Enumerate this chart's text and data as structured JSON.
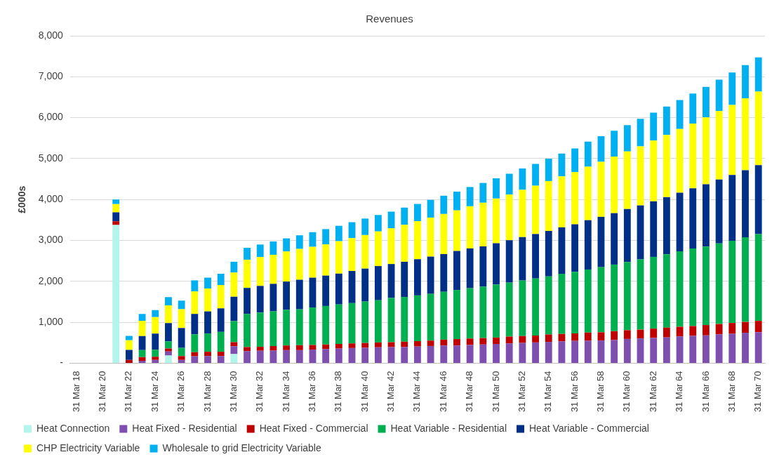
{
  "chart_data": {
    "type": "bar",
    "title": "Revenues",
    "ylabel": "£000s",
    "stacked": true,
    "grid": "y",
    "legend": "bottom",
    "categories": [
      "31 Mar 18",
      null,
      "31 Mar 20",
      null,
      "31 Mar 22",
      null,
      "31 Mar 24",
      null,
      "31 Mar 26",
      null,
      "31 Mar 28",
      null,
      "31 Mar 30",
      null,
      "31 Mar 32",
      null,
      "31 Mar 34",
      null,
      "31 Mar 36",
      null,
      "31 Mar 38",
      null,
      "31 Mar 40",
      null,
      "31 Mar 42",
      null,
      "31 Mar 44",
      null,
      "31 Mar 46",
      null,
      "31 Mar 48",
      null,
      "31 Mar 50",
      null,
      "31 Mar 52",
      null,
      "31 Mar 54",
      null,
      "31 Mar 56",
      null,
      "31 Mar 58",
      null,
      "31 Mar 60",
      null,
      "31 Mar 62",
      null,
      "31 Mar 64",
      null,
      "31 Mar 66",
      null,
      "31 Mar 68",
      null,
      "31 Mar 70"
    ],
    "ylim": [
      0,
      8000
    ],
    "yticks": [
      {
        "value": 0,
        "label": "-"
      },
      {
        "value": 1000,
        "label": "1,000"
      },
      {
        "value": 2000,
        "label": "2,000"
      },
      {
        "value": 3000,
        "label": "3,000"
      },
      {
        "value": 4000,
        "label": "4,000"
      },
      {
        "value": 5000,
        "label": "5,000"
      },
      {
        "value": 6000,
        "label": "6,000"
      },
      {
        "value": 7000,
        "label": "7,000"
      },
      {
        "value": 8000,
        "label": "8,000"
      }
    ],
    "series": [
      {
        "name": "Heat Connection",
        "color": "#b3f5ea",
        "values": [
          0,
          0,
          0,
          3380,
          0,
          0,
          0,
          190,
          0,
          0,
          0,
          0,
          225,
          0,
          0,
          0,
          0,
          0,
          0,
          0,
          0,
          0,
          0,
          0,
          0,
          0,
          0,
          0,
          0,
          0,
          0,
          0,
          0,
          0,
          0,
          0,
          0,
          0,
          0,
          0,
          0,
          0,
          0,
          0,
          0,
          0,
          0,
          0,
          0,
          0,
          0,
          0,
          0
        ]
      },
      {
        "name": "Heat Fixed - Residential",
        "color": "#7f4fb0",
        "values": [
          0,
          0,
          0,
          0,
          0,
          60,
          80,
          95,
          80,
          170,
          176,
          176,
          190,
          295,
          305,
          307,
          320,
          320,
          333,
          345,
          358,
          371,
          377,
          390,
          395,
          395,
          408,
          421,
          433,
          433,
          446,
          458,
          471,
          483,
          496,
          508,
          521,
          534,
          546,
          548,
          555,
          568,
          593,
          606,
          618,
          631,
          656,
          669,
          681,
          707,
          719,
          745,
          757
        ]
      },
      {
        "name": "Heat Fixed - Commercial",
        "color": "#c00000",
        "values": [
          0,
          0,
          0,
          90,
          80,
          90,
          80,
          75,
          95,
          100,
          105,
          105,
          100,
          100,
          96,
          113,
          113,
          120,
          113,
          113,
          113,
          113,
          118,
          118,
          119,
          132,
          132,
          132,
          144,
          157,
          157,
          157,
          157,
          169,
          169,
          169,
          182,
          182,
          182,
          202,
          202,
          215,
          215,
          215,
          227,
          240,
          235,
          240,
          252,
          252,
          265,
          265,
          278
        ]
      },
      {
        "name": "Heat Variable - Residential",
        "color": "#00b050",
        "values": [
          0,
          0,
          0,
          0,
          0,
          170,
          170,
          175,
          200,
          435,
          445,
          485,
          515,
          810,
          836,
          848,
          872,
          878,
          916,
          941,
          966,
          985,
          1012,
          1031,
          1081,
          1092,
          1117,
          1142,
          1168,
          1199,
          1230,
          1255,
          1293,
          1318,
          1356,
          1394,
          1419,
          1469,
          1506,
          1540,
          1590,
          1628,
          1666,
          1716,
          1754,
          1792,
          1843,
          1893,
          1918,
          1969,
          2007,
          2070,
          2120
        ]
      },
      {
        "name": "Heat Variable - Commercial",
        "color": "#002f87",
        "values": [
          0,
          0,
          0,
          215,
          245,
          345,
          395,
          445,
          485,
          500,
          540,
          575,
          595,
          635,
          652,
          672,
          691,
          722,
          728,
          742,
          753,
          785,
          805,
          835,
          829,
          860,
          885,
          910,
          923,
          954,
          973,
          985,
          1011,
          1036,
          1061,
          1086,
          1111,
          1136,
          1161,
          1205,
          1230,
          1256,
          1294,
          1319,
          1357,
          1395,
          1432,
          1470,
          1521,
          1559,
          1609,
          1634,
          1685
        ]
      },
      {
        "name": "CHP Electricity Variable",
        "color": "#ffff00",
        "values": [
          0,
          0,
          0,
          205,
          235,
          370,
          400,
          435,
          460,
          550,
          560,
          570,
          590,
          690,
          704,
          710,
          735,
          753,
          754,
          765,
          791,
          803,
          820,
          846,
          872,
          904,
          929,
          954,
          979,
          992,
          1029,
          1067,
          1092,
          1117,
          1155,
          1180,
          1218,
          1243,
          1274,
          1306,
          1344,
          1382,
          1407,
          1445,
          1483,
          1521,
          1559,
          1584,
          1634,
          1672,
          1710,
          1760,
          1798
        ]
      },
      {
        "name": "Wholesale to grid Electricity Variable",
        "color": "#00b0f0",
        "values": [
          0,
          0,
          0,
          110,
          110,
          170,
          175,
          200,
          210,
          270,
          265,
          275,
          265,
          290,
          307,
          326,
          320,
          333,
          358,
          371,
          377,
          389,
          403,
          402,
          408,
          420,
          421,
          433,
          446,
          458,
          471,
          483,
          496,
          508,
          521,
          534,
          546,
          559,
          577,
          612,
          625,
          631,
          644,
          669,
          681,
          694,
          707,
          732,
          745,
          770,
          795,
          808,
          833
        ]
      }
    ]
  }
}
